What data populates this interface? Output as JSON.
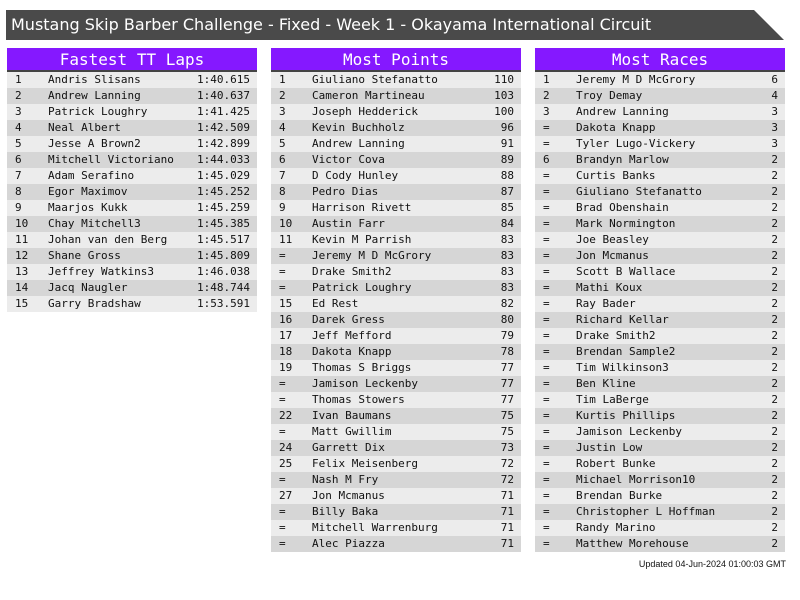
{
  "title": "Mustang Skip Barber Challenge - Fixed - Week 1 - Okayama International Circuit",
  "updated": "Updated 04-Jun-2024 01:00:03 GMT",
  "colors": {
    "header": "#8518ff",
    "title_bar": "#4a4a4a"
  },
  "panels": [
    {
      "title": "Fastest TT Laps",
      "rows": [
        [
          "1",
          "Andris Slisans",
          "1:40.615"
        ],
        [
          "2",
          "Andrew Lanning",
          "1:40.637"
        ],
        [
          "3",
          "Patrick Loughry",
          "1:41.425"
        ],
        [
          "4",
          "Neal Albert",
          "1:42.509"
        ],
        [
          "5",
          "Jesse A Brown2",
          "1:42.899"
        ],
        [
          "6",
          "Mitchell Victoriano",
          "1:44.033"
        ],
        [
          "7",
          "Adam Serafino",
          "1:45.029"
        ],
        [
          "8",
          "Egor Maximov",
          "1:45.252"
        ],
        [
          "9",
          "Maarjos Kukk",
          "1:45.259"
        ],
        [
          "10",
          "Chay Mitchell3",
          "1:45.385"
        ],
        [
          "11",
          "Johan van den Berg",
          "1:45.517"
        ],
        [
          "12",
          "Shane Gross",
          "1:45.809"
        ],
        [
          "13",
          "Jeffrey Watkins3",
          "1:46.038"
        ],
        [
          "14",
          "Jacq Naugler",
          "1:48.744"
        ],
        [
          "15",
          "Garry Bradshaw",
          "1:53.591"
        ]
      ]
    },
    {
      "title": "Most Points",
      "rows": [
        [
          "1",
          "Giuliano Stefanatto",
          "110"
        ],
        [
          "2",
          "Cameron Martineau",
          "103"
        ],
        [
          "3",
          "Joseph Hedderick",
          "100"
        ],
        [
          "4",
          "Kevin Buchholz",
          "96"
        ],
        [
          "5",
          "Andrew Lanning",
          "91"
        ],
        [
          "6",
          "Victor Cova",
          "89"
        ],
        [
          "7",
          "D Cody Hunley",
          "88"
        ],
        [
          "8",
          "Pedro Dias",
          "87"
        ],
        [
          "9",
          "Harrison Rivett",
          "85"
        ],
        [
          "10",
          "Austin Farr",
          "84"
        ],
        [
          "11",
          "Kevin M Parrish",
          "83"
        ],
        [
          "=",
          "Jeremy M D McGrory",
          "83"
        ],
        [
          "=",
          "Drake Smith2",
          "83"
        ],
        [
          "=",
          "Patrick Loughry",
          "83"
        ],
        [
          "15",
          "Ed Rest",
          "82"
        ],
        [
          "16",
          "Darek Gress",
          "80"
        ],
        [
          "17",
          "Jeff Mefford",
          "79"
        ],
        [
          "18",
          "Dakota Knapp",
          "78"
        ],
        [
          "19",
          "Thomas S Briggs",
          "77"
        ],
        [
          "=",
          "Jamison Leckenby",
          "77"
        ],
        [
          "=",
          "Thomas Stowers",
          "77"
        ],
        [
          "22",
          "Ivan Baumans",
          "75"
        ],
        [
          "=",
          "Matt Gwillim",
          "75"
        ],
        [
          "24",
          "Garrett Dix",
          "73"
        ],
        [
          "25",
          "Felix Meisenberg",
          "72"
        ],
        [
          "=",
          "Nash M Fry",
          "72"
        ],
        [
          "27",
          "Jon Mcmanus",
          "71"
        ],
        [
          "=",
          "Billy Baka",
          "71"
        ],
        [
          "=",
          "Mitchell Warrenburg",
          "71"
        ],
        [
          "=",
          "Alec Piazza",
          "71"
        ]
      ]
    },
    {
      "title": "Most Races",
      "rows": [
        [
          "1",
          "Jeremy M D McGrory",
          "6"
        ],
        [
          "2",
          "Troy Demay",
          "4"
        ],
        [
          "3",
          "Andrew Lanning",
          "3"
        ],
        [
          "=",
          "Dakota Knapp",
          "3"
        ],
        [
          "=",
          "Tyler Lugo-Vickery",
          "3"
        ],
        [
          "6",
          "Brandyn Marlow",
          "2"
        ],
        [
          "=",
          "Curtis Banks",
          "2"
        ],
        [
          "=",
          "Giuliano Stefanatto",
          "2"
        ],
        [
          "=",
          "Brad Obenshain",
          "2"
        ],
        [
          "=",
          "Mark Normington",
          "2"
        ],
        [
          "=",
          "Joe Beasley",
          "2"
        ],
        [
          "=",
          "Jon Mcmanus",
          "2"
        ],
        [
          "=",
          "Scott B Wallace",
          "2"
        ],
        [
          "=",
          "Mathi Koux",
          "2"
        ],
        [
          "=",
          "Ray Bader",
          "2"
        ],
        [
          "=",
          "Richard Kellar",
          "2"
        ],
        [
          "=",
          "Drake Smith2",
          "2"
        ],
        [
          "=",
          "Brendan Sample2",
          "2"
        ],
        [
          "=",
          "Tim Wilkinson3",
          "2"
        ],
        [
          "=",
          "Ben Kline",
          "2"
        ],
        [
          "=",
          "Tim LaBerge",
          "2"
        ],
        [
          "=",
          "Kurtis Phillips",
          "2"
        ],
        [
          "=",
          "Jamison Leckenby",
          "2"
        ],
        [
          "=",
          "Justin Low",
          "2"
        ],
        [
          "=",
          "Robert Bunke",
          "2"
        ],
        [
          "=",
          "Michael Morrison10",
          "2"
        ],
        [
          "=",
          "Brendan Burke",
          "2"
        ],
        [
          "=",
          "Christopher L Hoffman",
          "2"
        ],
        [
          "=",
          "Randy Marino",
          "2"
        ],
        [
          "=",
          "Matthew Morehouse",
          "2"
        ]
      ]
    }
  ]
}
